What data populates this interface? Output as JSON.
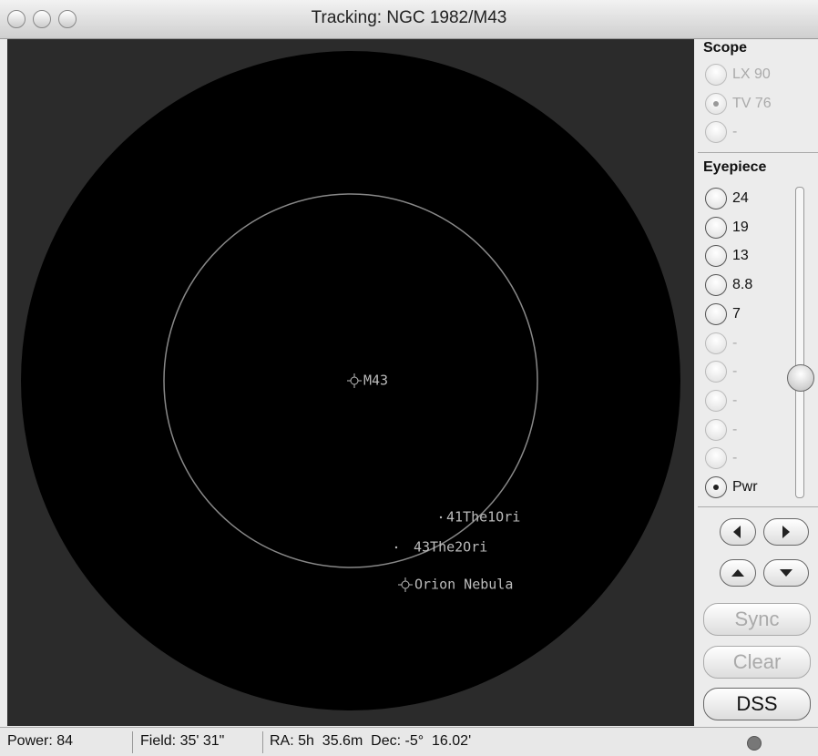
{
  "window": {
    "title": "Tracking: NGC 1982/M43"
  },
  "sky_view": {
    "objects": [
      {
        "label": "M43"
      },
      {
        "label": "41The1Ori"
      },
      {
        "label": "43The2Ori"
      },
      {
        "label": "Orion Nebula"
      }
    ]
  },
  "sidebar": {
    "scope": {
      "heading": "Scope",
      "options": [
        "LX 90",
        "TV 76",
        "-"
      ],
      "selected_index": 1,
      "disabled": true
    },
    "eyepiece": {
      "heading": "Eyepiece",
      "options": [
        "24",
        "19",
        "13",
        "8.8",
        "7",
        "-",
        "-",
        "-",
        "-",
        "-",
        "Pwr"
      ],
      "selected_index": 10,
      "disabled": false
    },
    "buttons": [
      {
        "label": "Sync",
        "disabled": true
      },
      {
        "label": "Clear",
        "disabled": true
      },
      {
        "label": "DSS",
        "disabled": false
      }
    ]
  },
  "status_bar": {
    "power": "Power: 84",
    "field": "Field: 35' 31\"",
    "coords": "RA: 5h  35.6m  Dec: -5°  16.02'"
  }
}
